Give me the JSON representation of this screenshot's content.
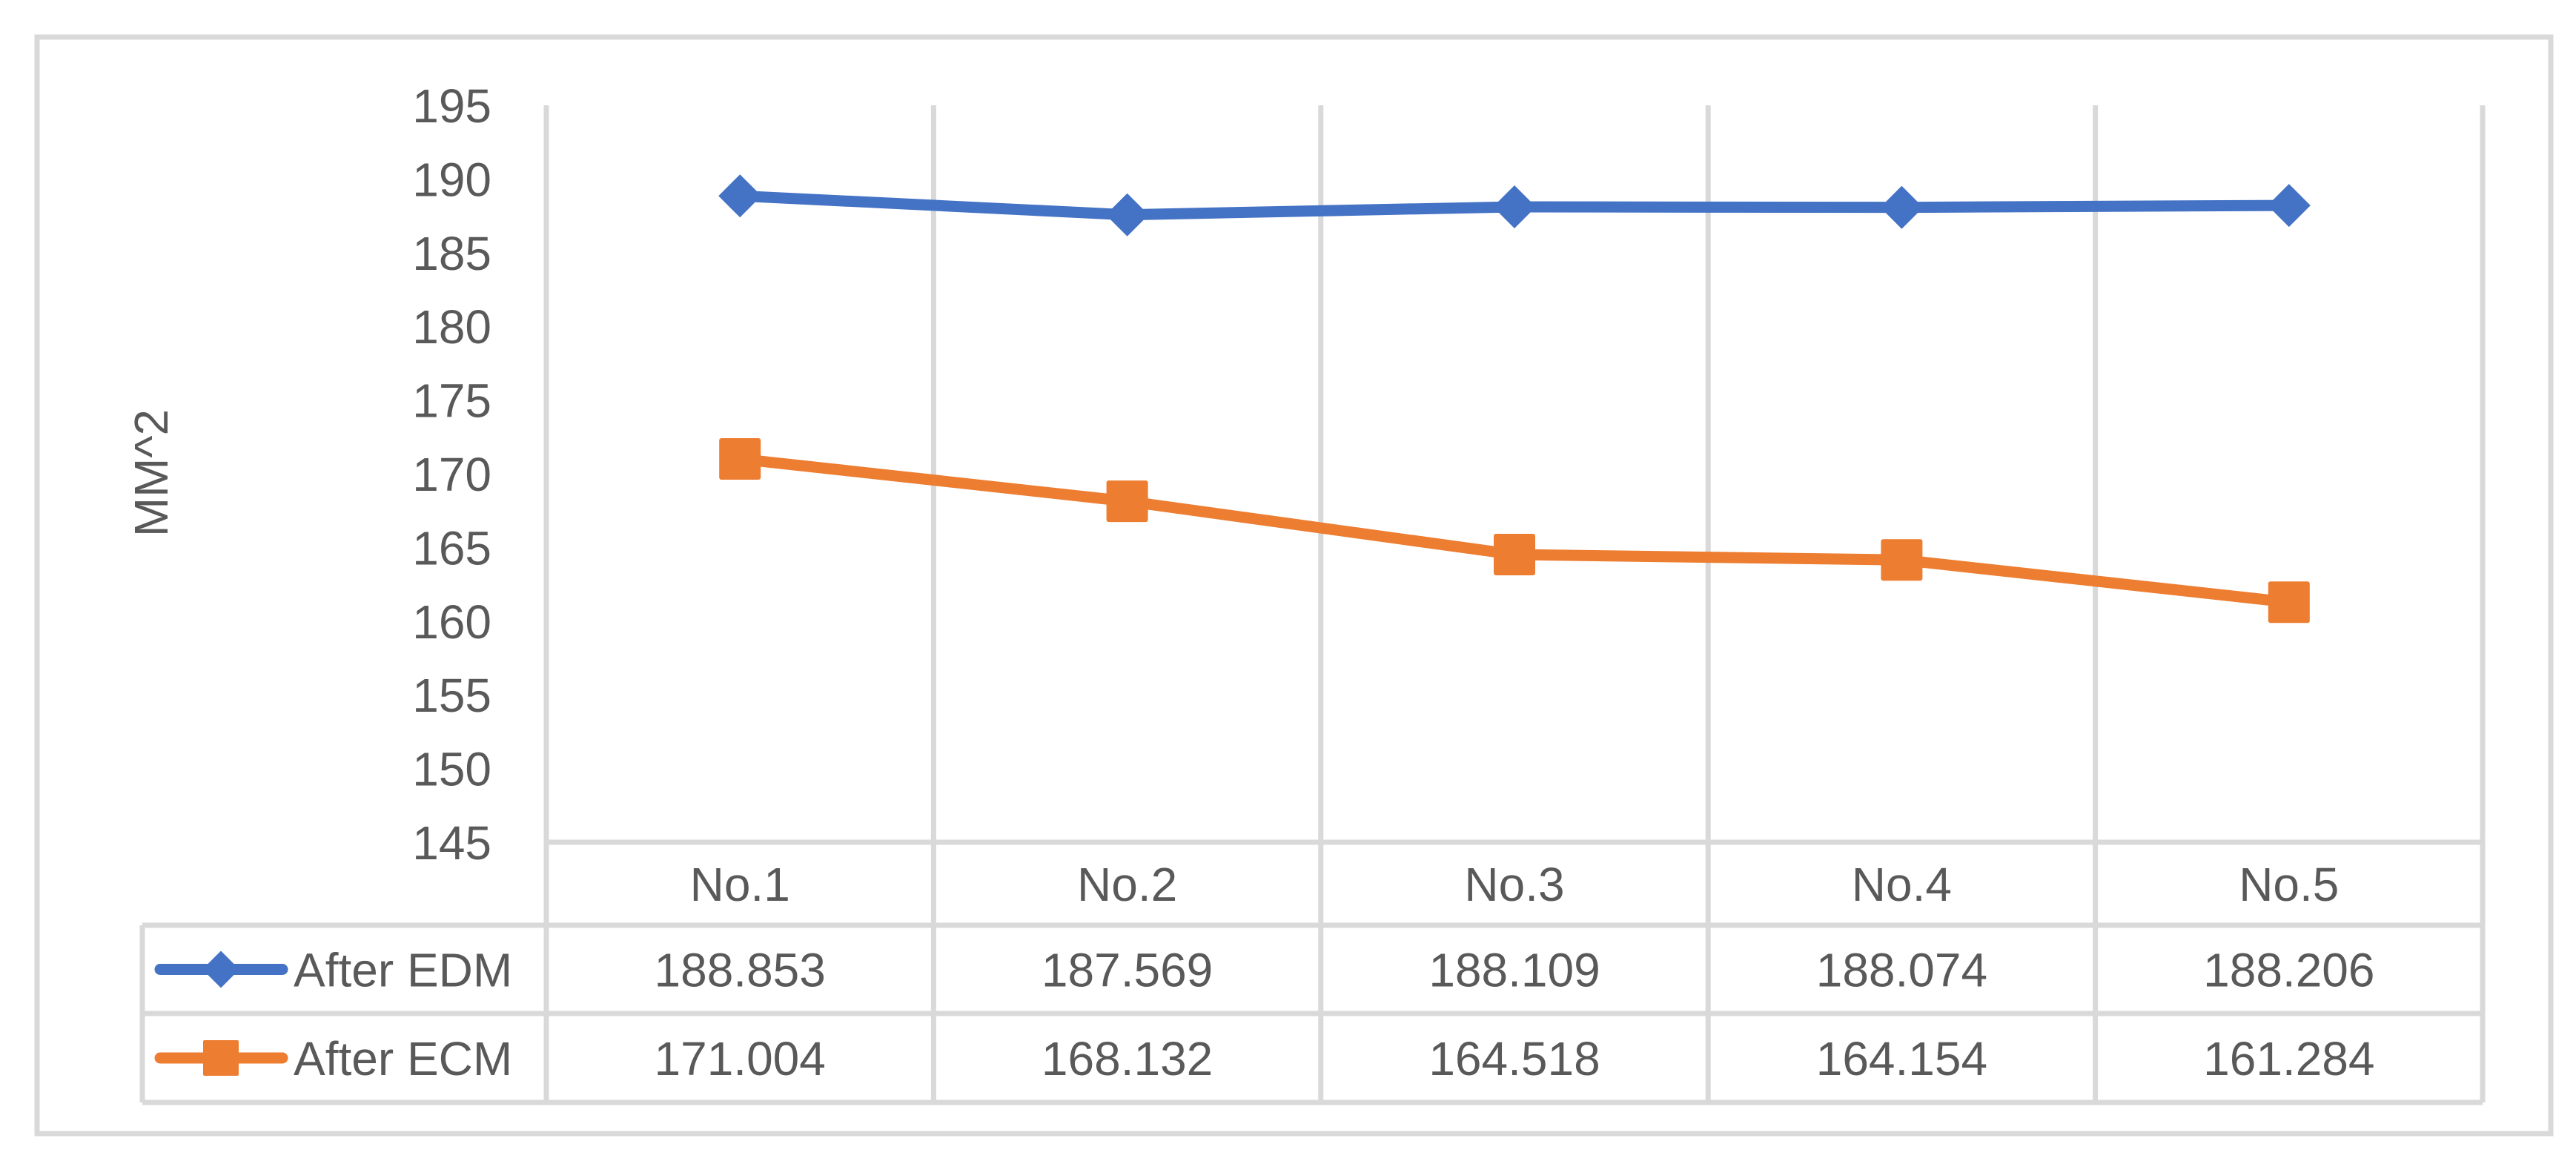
{
  "chart_data": {
    "type": "line",
    "title": "",
    "xlabel": "",
    "ylabel": "MM^2",
    "ylim": [
      145,
      195
    ],
    "ytick_step": 5,
    "yticks": [
      195,
      190,
      185,
      180,
      175,
      170,
      165,
      160,
      155,
      150,
      145
    ],
    "grid": "vertical category separators only",
    "legend_position": "data table (below plot)",
    "categories": [
      "No.1",
      "No.2",
      "No.3",
      "No.4",
      "No.5"
    ],
    "series": [
      {
        "name": "After EDM",
        "color": "#4472C4",
        "marker": "diamond",
        "values": [
          188.853,
          187.569,
          188.109,
          188.074,
          188.206
        ],
        "labels": [
          "188.853",
          "187.569",
          "188.109",
          "188.074",
          "188.206"
        ]
      },
      {
        "name": "After ECM",
        "color": "#ED7D31",
        "marker": "square",
        "values": [
          171.004,
          168.132,
          164.518,
          164.154,
          161.284
        ],
        "labels": [
          "171.004",
          "168.132",
          "164.518",
          "164.154",
          "161.284"
        ]
      }
    ]
  },
  "colors": {
    "gridline": "#D9D9D9",
    "text": "#595959",
    "background": "#FFFFFF"
  }
}
